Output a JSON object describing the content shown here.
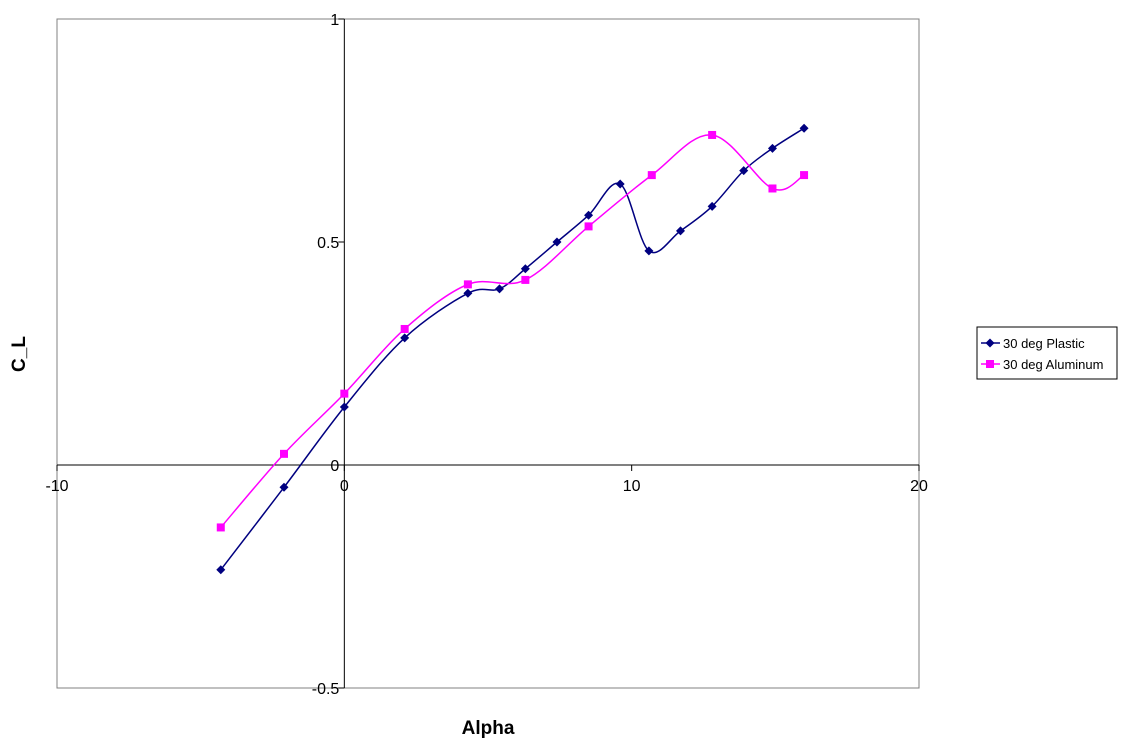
{
  "chart_data": {
    "type": "line",
    "title": "",
    "xlabel": "Alpha",
    "ylabel": "C_L",
    "xlim": [
      -10,
      20
    ],
    "ylim": [
      -0.5,
      1
    ],
    "x_ticks": [
      -10,
      0,
      10,
      20
    ],
    "x_tick_labels": [
      "-10",
      "0",
      "10",
      "20"
    ],
    "y_ticks": [
      -0.5,
      0,
      0.5,
      1
    ],
    "y_tick_labels": [
      "-0.5",
      "0",
      "0.5",
      "1"
    ],
    "grid": false,
    "legend_position": "right",
    "series": [
      {
        "name": "30 deg Plastic",
        "color": "#000080",
        "marker": "diamond",
        "points": [
          [
            -4.3,
            -0.235
          ],
          [
            -2.1,
            -0.05
          ],
          [
            0,
            0.13
          ],
          [
            2.1,
            0.285
          ],
          [
            4.3,
            0.385
          ],
          [
            5.4,
            0.395
          ],
          [
            6.3,
            0.44
          ],
          [
            7.4,
            0.5
          ],
          [
            8.5,
            0.56
          ],
          [
            9.6,
            0.63
          ],
          [
            10.6,
            0.48
          ],
          [
            11.7,
            0.525
          ],
          [
            12.8,
            0.58
          ],
          [
            13.9,
            0.66
          ],
          [
            14.9,
            0.71
          ],
          [
            16,
            0.755
          ]
        ]
      },
      {
        "name": "30 deg Aluminum",
        "color": "#FF00FF",
        "marker": "square",
        "points": [
          [
            -4.3,
            -0.14
          ],
          [
            -2.1,
            0.025
          ],
          [
            0,
            0.16
          ],
          [
            2.1,
            0.305
          ],
          [
            4.3,
            0.405
          ],
          [
            6.3,
            0.415
          ],
          [
            8.5,
            0.535
          ],
          [
            10.7,
            0.65
          ],
          [
            12.8,
            0.74
          ],
          [
            14.9,
            0.62
          ],
          [
            16,
            0.65
          ]
        ]
      }
    ]
  }
}
